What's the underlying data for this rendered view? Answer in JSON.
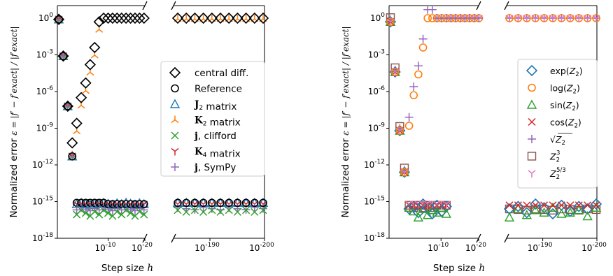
{
  "figure": {
    "ytick_labels": [
      "10",
      "10",
      "10",
      "10",
      "10",
      "10",
      "10"
    ],
    "ytick_exponents": [
      "0",
      "-3",
      "-6",
      "-9",
      "-12",
      "-15",
      "-18"
    ],
    "ytick_plain": [
      "10",
      "10"
    ],
    "xtick_base": "10",
    "left_xticks": [
      "-10",
      "-20"
    ],
    "right_xticks": [
      "-190",
      "-200"
    ],
    "ylabel_prefix": "Normalized error ",
    "ylabel_math": "ε = |f′ − f′exact| / |f′exact|",
    "xlabel_prefix": "Step size ",
    "xlabel_math": "h"
  },
  "chart_data": [
    {
      "type": "scatter",
      "panel": "left",
      "xscale": "log (reversed, broken axis)",
      "yscale": "log",
      "xlim_segment1": [
        "10^-1",
        "10^-20"
      ],
      "xlim_segment2": [
        "10^-180",
        "10^-200"
      ],
      "ylim": [
        "10^-18",
        "10^1"
      ],
      "legend_position": "center-right",
      "legend": [
        {
          "label": "central diff.",
          "marker": "diamond",
          "color": "#000000"
        },
        {
          "label": "Reference",
          "marker": "circle",
          "color": "#000000"
        },
        {
          "label": "J₂ matrix",
          "marker": "triangle",
          "color": "#1f77b4"
        },
        {
          "label": "K₂ matrix",
          "marker": "tri_down",
          "color": "#ff7f0e"
        },
        {
          "label": "j, clifford",
          "marker": "x",
          "color": "#2ca02c"
        },
        {
          "label": "K₄ matrix",
          "marker": "tri_up",
          "color": "#d62728"
        },
        {
          "label": "j, SymPy",
          "marker": "plus",
          "color": "#9467bd"
        }
      ],
      "series": [
        {
          "name": "central diff.",
          "h_exp": [
            -1,
            -2,
            -3,
            -4,
            -5,
            -6,
            -7,
            -8,
            -9,
            -10,
            -11,
            -12,
            -13,
            -14,
            -15,
            -16,
            -17,
            -18,
            -19,
            -20
          ],
          "log10_error": [
            -0.1,
            -3.1,
            -7.2,
            -10.2,
            -8.6,
            -6.5,
            -5.3,
            -3.8,
            -2.4,
            -0.3,
            0,
            0,
            0,
            0,
            0,
            0,
            0,
            0,
            0,
            0
          ]
        },
        {
          "name": "Reference",
          "h_exp": [
            -1,
            -2,
            -3,
            -4,
            -5,
            -6,
            -7,
            -8,
            -9,
            -10,
            -11,
            -12,
            -13,
            -14,
            -15,
            -16,
            -17,
            -18,
            -19,
            -20
          ],
          "log10_error": [
            -0.1,
            -3.1,
            -7.2,
            -11.3,
            -15.1,
            -15.1,
            -15.1,
            -15.1,
            -15.1,
            -15.1,
            -15.1,
            -15.2,
            -15.2,
            -15.2,
            -15.2,
            -15.2,
            -15.2,
            -15.2,
            -15.2,
            -15.2
          ]
        }
      ],
      "right_segment": {
        "central diff.": 0,
        "Reference": -15.1,
        "others": -15.3
      }
    },
    {
      "type": "scatter",
      "panel": "right",
      "xscale": "log (reversed, broken axis)",
      "yscale": "log",
      "xlim_segment1": [
        "10^-1",
        "10^-20"
      ],
      "xlim_segment2": [
        "10^-180",
        "10^-200"
      ],
      "ylim": [
        "10^-18",
        "10^1"
      ],
      "legend_position": "center-right",
      "legend": [
        {
          "label": "exp(Z₂)",
          "marker": "diamond",
          "color": "#1f77b4"
        },
        {
          "label": "log(Z₂)",
          "marker": "circle",
          "color": "#ff7f0e"
        },
        {
          "label": "sin(Z₂)",
          "marker": "triangle",
          "color": "#2ca02c"
        },
        {
          "label": "cos(Z₂)",
          "marker": "x",
          "color": "#d62728"
        },
        {
          "label": "√Z₂",
          "marker": "plus",
          "color": "#9467bd"
        },
        {
          "label": "Z₂³",
          "marker": "square",
          "color": "#8c564b"
        },
        {
          "label": "Z₂^(5/3)",
          "marker": "tri_up",
          "color": "#e377c2"
        }
      ],
      "series": [
        {
          "name": "log(Z₂)",
          "h_exp": [
            -1,
            -2,
            -3,
            -4,
            -5,
            -6,
            -7,
            -8,
            -9,
            -10,
            -11,
            -12,
            -13,
            -14,
            -15,
            -16,
            -17,
            -18,
            -19,
            -20
          ],
          "log10_error": [
            -0.3,
            -4.4,
            -9.2,
            -12.6,
            -8.8,
            -6.3,
            -4.6,
            -2.4,
            0,
            0,
            0,
            0,
            0,
            0,
            0,
            0,
            0,
            0,
            0,
            0
          ]
        },
        {
          "name": "exp(Z₂)",
          "h_exp": [
            -1,
            -2,
            -3,
            -4,
            -5,
            -6,
            -7,
            -8,
            -9,
            -10
          ],
          "log10_error": [
            -0.4,
            -4.4,
            -9.2,
            -12.8,
            -16.4,
            -15.6,
            -15.9,
            -15.8,
            -16.0,
            -15.9
          ]
        }
      ]
    }
  ],
  "legend_texts": {
    "left": [
      "central diff.",
      "Reference",
      "J",
      "2",
      " matrix",
      "K",
      "2",
      " matrix",
      "j",
      ", clifford",
      "K",
      "4",
      " matrix",
      "j",
      ", SymPy"
    ],
    "right": [
      "exp(",
      "Z",
      "2",
      ")",
      "log(",
      "Z",
      "2",
      ")",
      "sin(",
      "Z",
      "2",
      ")",
      "cos(",
      "Z",
      "2",
      ")",
      "Z",
      "2",
      "Z",
      "2",
      "3",
      "Z",
      "2",
      "5/3"
    ]
  }
}
